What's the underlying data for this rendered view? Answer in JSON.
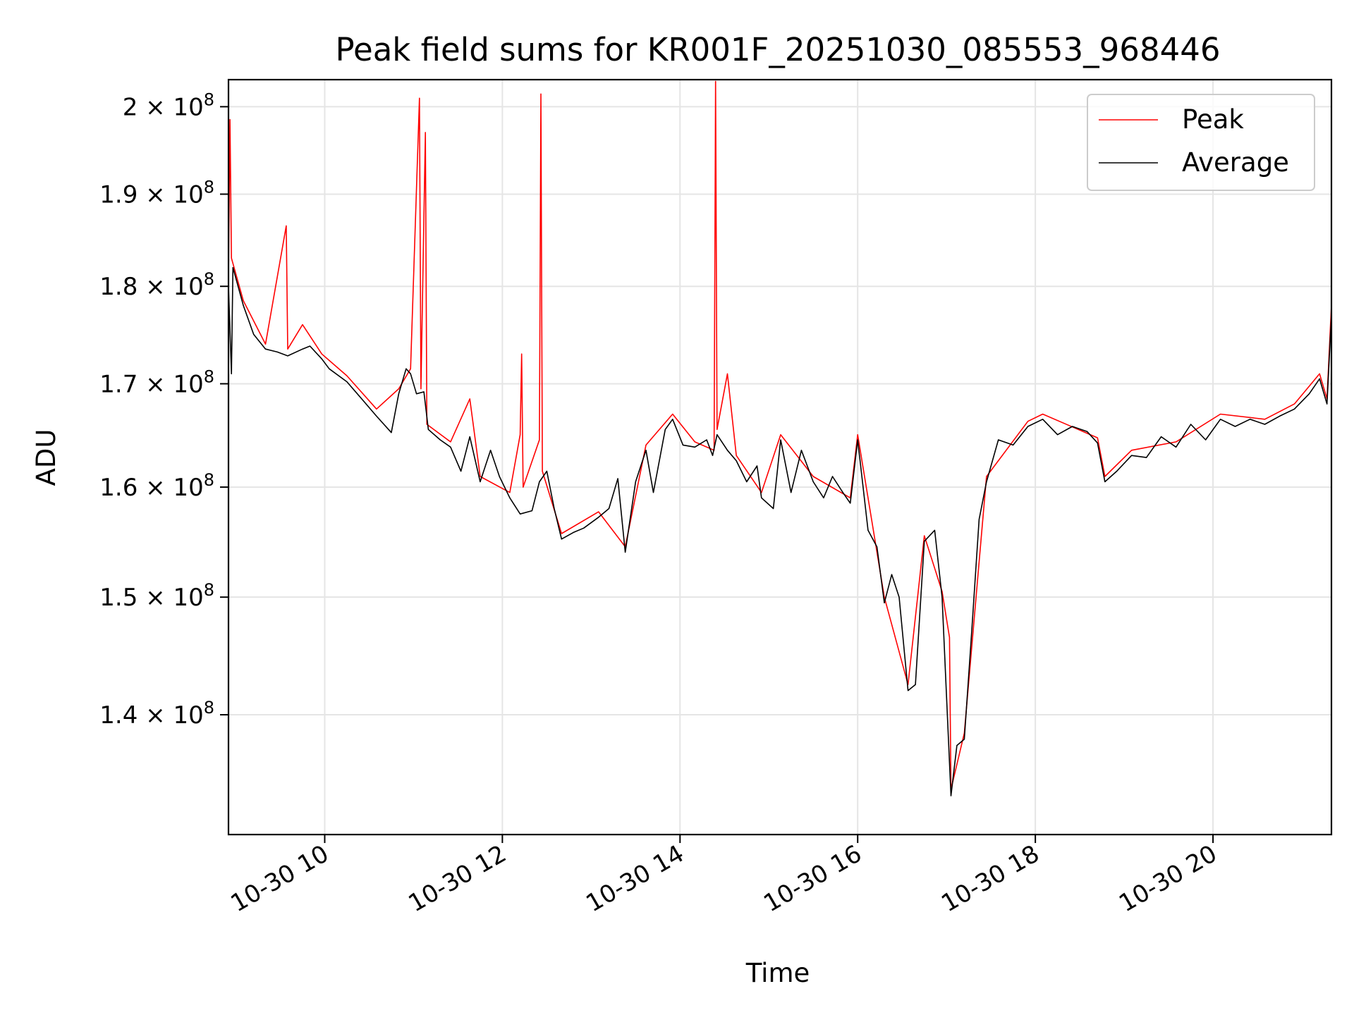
{
  "chart_data": {
    "type": "line",
    "title": "Peak field sums for KR001F_20251030_085553_968446",
    "xlabel": "Time",
    "ylabel": "ADU",
    "x_range": [
      "2025-10-30T08:55",
      "2025-10-30T21:20"
    ],
    "ylim": [
      130500000,
      203200000
    ],
    "y_scale": "log",
    "grid": true,
    "legend_position": "top-right",
    "x_ticks": [
      {
        "t": "2025-10-30T10:00",
        "label": "10-30 10"
      },
      {
        "t": "2025-10-30T12:00",
        "label": "10-30 12"
      },
      {
        "t": "2025-10-30T14:00",
        "label": "10-30 14"
      },
      {
        "t": "2025-10-30T16:00",
        "label": "10-30 16"
      },
      {
        "t": "2025-10-30T18:00",
        "label": "10-30 18"
      },
      {
        "t": "2025-10-30T20:00",
        "label": "10-30 20"
      }
    ],
    "y_ticks": [
      {
        "value": 140000000,
        "mantissa": "1.4",
        "base": "10",
        "exp": "8"
      },
      {
        "value": 150000000,
        "mantissa": "1.5",
        "base": "10",
        "exp": "8"
      },
      {
        "value": 160000000,
        "mantissa": "1.6",
        "base": "10",
        "exp": "8"
      },
      {
        "value": 170000000,
        "mantissa": "1.7",
        "base": "10",
        "exp": "8"
      },
      {
        "value": 180000000,
        "mantissa": "1.8",
        "base": "10",
        "exp": "8"
      },
      {
        "value": 190000000,
        "mantissa": "1.9",
        "base": "10",
        "exp": "8"
      },
      {
        "value": 200000000,
        "mantissa": "2",
        "base": "10",
        "exp": "8"
      }
    ],
    "series": [
      {
        "name": "Average",
        "color": "#000000",
        "points": [
          [
            "2025-10-30T08:55",
            180000000
          ],
          [
            "2025-10-30T08:57",
            171000000
          ],
          [
            "2025-10-30T08:58",
            182000000
          ],
          [
            "2025-10-30T09:05",
            178000000
          ],
          [
            "2025-10-30T09:12",
            175000000
          ],
          [
            "2025-10-30T09:20",
            173500000
          ],
          [
            "2025-10-30T09:28",
            173200000
          ],
          [
            "2025-10-30T09:35",
            172800000
          ],
          [
            "2025-10-30T09:45",
            173500000
          ],
          [
            "2025-10-30T09:50",
            173800000
          ],
          [
            "2025-10-30T09:58",
            172500000
          ],
          [
            "2025-10-30T10:03",
            171500000
          ],
          [
            "2025-10-30T10:15",
            170200000
          ],
          [
            "2025-10-30T10:25",
            168500000
          ],
          [
            "2025-10-30T10:35",
            166800000
          ],
          [
            "2025-10-30T10:45",
            165200000
          ],
          [
            "2025-10-30T10:50",
            169000000
          ],
          [
            "2025-10-30T10:55",
            171500000
          ],
          [
            "2025-10-30T10:58",
            171000000
          ],
          [
            "2025-10-30T11:02",
            169000000
          ],
          [
            "2025-10-30T11:07",
            169200000
          ],
          [
            "2025-10-30T11:10",
            165500000
          ],
          [
            "2025-10-30T11:18",
            164500000
          ],
          [
            "2025-10-30T11:25",
            163800000
          ],
          [
            "2025-10-30T11:32",
            161500000
          ],
          [
            "2025-10-30T11:38",
            164800000
          ],
          [
            "2025-10-30T11:45",
            160500000
          ],
          [
            "2025-10-30T11:52",
            163500000
          ],
          [
            "2025-10-30T11:58",
            161000000
          ],
          [
            "2025-10-30T12:05",
            159000000
          ],
          [
            "2025-10-30T12:12",
            157500000
          ],
          [
            "2025-10-30T12:20",
            157800000
          ],
          [
            "2025-10-30T12:25",
            160500000
          ],
          [
            "2025-10-30T12:30",
            161500000
          ],
          [
            "2025-10-30T12:35",
            158000000
          ],
          [
            "2025-10-30T12:40",
            155200000
          ],
          [
            "2025-10-30T12:48",
            155800000
          ],
          [
            "2025-10-30T12:55",
            156200000
          ],
          [
            "2025-10-30T13:05",
            157200000
          ],
          [
            "2025-10-30T13:12",
            158000000
          ],
          [
            "2025-10-30T13:18",
            160800000
          ],
          [
            "2025-10-30T13:23",
            154000000
          ],
          [
            "2025-10-30T13:30",
            160500000
          ],
          [
            "2025-10-30T13:37",
            163500000
          ],
          [
            "2025-10-30T13:42",
            159500000
          ],
          [
            "2025-10-30T13:50",
            165500000
          ],
          [
            "2025-10-30T13:55",
            166500000
          ],
          [
            "2025-10-30T14:02",
            164000000
          ],
          [
            "2025-10-30T14:10",
            163800000
          ],
          [
            "2025-10-30T14:18",
            164500000
          ],
          [
            "2025-10-30T14:22",
            163000000
          ],
          [
            "2025-10-30T14:25",
            165000000
          ],
          [
            "2025-10-30T14:32",
            163500000
          ],
          [
            "2025-10-30T14:38",
            162500000
          ],
          [
            "2025-10-30T14:45",
            160500000
          ],
          [
            "2025-10-30T14:52",
            162000000
          ],
          [
            "2025-10-30T14:55",
            159000000
          ],
          [
            "2025-10-30T15:03",
            158000000
          ],
          [
            "2025-10-30T15:08",
            164500000
          ],
          [
            "2025-10-30T15:15",
            159500000
          ],
          [
            "2025-10-30T15:22",
            163500000
          ],
          [
            "2025-10-30T15:30",
            160500000
          ],
          [
            "2025-10-30T15:37",
            159000000
          ],
          [
            "2025-10-30T15:43",
            161000000
          ],
          [
            "2025-10-30T15:50",
            159500000
          ],
          [
            "2025-10-30T15:55",
            158500000
          ],
          [
            "2025-10-30T16:00",
            164500000
          ],
          [
            "2025-10-30T16:07",
            156000000
          ],
          [
            "2025-10-30T16:13",
            154500000
          ],
          [
            "2025-10-30T16:18",
            149500000
          ],
          [
            "2025-10-30T16:23",
            152000000
          ],
          [
            "2025-10-30T16:28",
            150000000
          ],
          [
            "2025-10-30T16:34",
            142000000
          ],
          [
            "2025-10-30T16:39",
            142500000
          ],
          [
            "2025-10-30T16:45",
            155000000
          ],
          [
            "2025-10-30T16:52",
            156000000
          ],
          [
            "2025-10-30T16:57",
            150000000
          ],
          [
            "2025-10-30T17:03",
            133500000
          ],
          [
            "2025-10-30T17:07",
            137500000
          ],
          [
            "2025-10-30T17:12",
            138000000
          ],
          [
            "2025-10-30T17:17",
            147000000
          ],
          [
            "2025-10-30T17:22",
            157000000
          ],
          [
            "2025-10-30T17:27",
            160500000
          ],
          [
            "2025-10-30T17:35",
            164500000
          ],
          [
            "2025-10-30T17:45",
            164000000
          ],
          [
            "2025-10-30T17:55",
            165800000
          ],
          [
            "2025-10-30T18:05",
            166500000
          ],
          [
            "2025-10-30T18:15",
            165000000
          ],
          [
            "2025-10-30T18:25",
            165800000
          ],
          [
            "2025-10-30T18:35",
            165300000
          ],
          [
            "2025-10-30T18:42",
            164200000
          ],
          [
            "2025-10-30T18:47",
            160500000
          ],
          [
            "2025-10-30T18:55",
            161500000
          ],
          [
            "2025-10-30T19:05",
            163000000
          ],
          [
            "2025-10-30T19:15",
            162800000
          ],
          [
            "2025-10-30T19:25",
            164800000
          ],
          [
            "2025-10-30T19:35",
            163800000
          ],
          [
            "2025-10-30T19:45",
            166000000
          ],
          [
            "2025-10-30T19:55",
            164500000
          ],
          [
            "2025-10-30T20:05",
            166500000
          ],
          [
            "2025-10-30T20:15",
            165800000
          ],
          [
            "2025-10-30T20:25",
            166500000
          ],
          [
            "2025-10-30T20:35",
            166000000
          ],
          [
            "2025-10-30T20:45",
            166800000
          ],
          [
            "2025-10-30T20:55",
            167500000
          ],
          [
            "2025-10-30T21:05",
            169000000
          ],
          [
            "2025-10-30T21:12",
            170500000
          ],
          [
            "2025-10-30T21:17",
            168000000
          ],
          [
            "2025-10-30T21:20",
            177000000
          ]
        ]
      },
      {
        "name": "Peak",
        "color": "#ff0000",
        "points": [
          [
            "2025-10-30T08:55",
            180500000
          ],
          [
            "2025-10-30T08:56",
            198500000
          ],
          [
            "2025-10-30T08:57",
            183000000
          ],
          [
            "2025-10-30T09:05",
            178500000
          ],
          [
            "2025-10-30T09:20",
            174000000
          ],
          [
            "2025-10-30T09:34",
            186500000
          ],
          [
            "2025-10-30T09:35",
            173500000
          ],
          [
            "2025-10-30T09:45",
            176000000
          ],
          [
            "2025-10-30T09:58",
            173000000
          ],
          [
            "2025-10-30T10:15",
            170800000
          ],
          [
            "2025-10-30T10:35",
            167500000
          ],
          [
            "2025-10-30T10:50",
            169500000
          ],
          [
            "2025-10-30T10:58",
            171500000
          ],
          [
            "2025-10-30T11:04",
            201000000
          ],
          [
            "2025-10-30T11:05",
            169500000
          ],
          [
            "2025-10-30T11:08",
            197000000
          ],
          [
            "2025-10-30T11:09",
            166000000
          ],
          [
            "2025-10-30T11:25",
            164300000
          ],
          [
            "2025-10-30T11:38",
            168500000
          ],
          [
            "2025-10-30T11:45",
            161000000
          ],
          [
            "2025-10-30T12:05",
            159500000
          ],
          [
            "2025-10-30T12:12",
            165000000
          ],
          [
            "2025-10-30T12:13",
            173000000
          ],
          [
            "2025-10-30T12:14",
            160000000
          ],
          [
            "2025-10-30T12:25",
            164500000
          ],
          [
            "2025-10-30T12:26",
            201500000
          ],
          [
            "2025-10-30T12:27",
            161500000
          ],
          [
            "2025-10-30T12:40",
            155700000
          ],
          [
            "2025-10-30T13:05",
            157700000
          ],
          [
            "2025-10-30T13:23",
            154500000
          ],
          [
            "2025-10-30T13:37",
            164000000
          ],
          [
            "2025-10-30T13:55",
            167000000
          ],
          [
            "2025-10-30T14:10",
            164300000
          ],
          [
            "2025-10-30T14:23",
            163500000
          ],
          [
            "2025-10-30T14:24",
            203000000
          ],
          [
            "2025-10-30T14:25",
            165500000
          ],
          [
            "2025-10-30T14:32",
            171000000
          ],
          [
            "2025-10-30T14:38",
            163000000
          ],
          [
            "2025-10-30T14:55",
            159500000
          ],
          [
            "2025-10-30T15:08",
            165000000
          ],
          [
            "2025-10-30T15:30",
            161000000
          ],
          [
            "2025-10-30T15:55",
            159000000
          ],
          [
            "2025-10-30T16:00",
            165000000
          ],
          [
            "2025-10-30T16:18",
            150000000
          ],
          [
            "2025-10-30T16:34",
            142500000
          ],
          [
            "2025-10-30T16:45",
            155500000
          ],
          [
            "2025-10-30T16:57",
            150500000
          ],
          [
            "2025-10-30T17:02",
            146500000
          ],
          [
            "2025-10-30T17:03",
            134000000
          ],
          [
            "2025-10-30T17:12",
            138500000
          ],
          [
            "2025-10-30T17:27",
            161000000
          ],
          [
            "2025-10-30T17:55",
            166300000
          ],
          [
            "2025-10-30T18:05",
            167000000
          ],
          [
            "2025-10-30T18:42",
            164700000
          ],
          [
            "2025-10-30T18:47",
            161000000
          ],
          [
            "2025-10-30T19:05",
            163500000
          ],
          [
            "2025-10-30T19:35",
            164300000
          ],
          [
            "2025-10-30T20:05",
            167000000
          ],
          [
            "2025-10-30T20:35",
            166500000
          ],
          [
            "2025-10-30T20:55",
            168000000
          ],
          [
            "2025-10-30T21:12",
            171000000
          ],
          [
            "2025-10-30T21:17",
            168500000
          ],
          [
            "2025-10-30T21:20",
            178000000
          ]
        ]
      }
    ]
  }
}
